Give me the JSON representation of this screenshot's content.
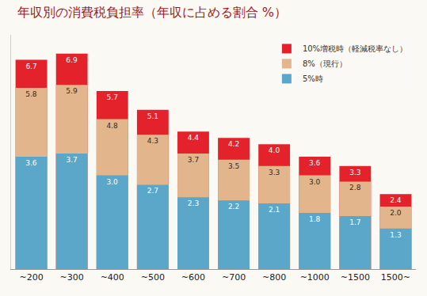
{
  "chart_data": {
    "type": "bar",
    "title": "年収別の消費税負担率（年収に占める割合 %）",
    "categories": [
      "~200",
      "~300",
      "~400",
      "~500",
      "~600",
      "~700",
      "~800",
      "~1000",
      "~1500",
      "1500~"
    ],
    "series": [
      {
        "name": "10%増税時（軽減税率なし）",
        "color": "#e3222b",
        "values": [
          6.7,
          6.9,
          5.7,
          5.1,
          4.4,
          4.2,
          4.0,
          3.6,
          3.3,
          2.4
        ],
        "value_labels": [
          "6.7",
          "6.9",
          "5.7",
          "5.1",
          "4.4",
          "4.2",
          "4.0",
          "3.6",
          "3.3",
          "2.4"
        ]
      },
      {
        "name": "8%（現行）",
        "color": "#e2b58c",
        "values": [
          5.8,
          5.9,
          4.8,
          4.3,
          3.7,
          3.5,
          3.3,
          3.0,
          2.8,
          2.0
        ],
        "value_labels": [
          "5.8",
          "5.9",
          "4.8",
          "4.3",
          "3.7",
          "3.5",
          "3.3",
          "3.0",
          "2.8",
          "2.0"
        ]
      },
      {
        "name": "5%時",
        "color": "#5aa7c9",
        "values": [
          3.6,
          3.7,
          3.0,
          2.7,
          2.3,
          2.2,
          2.1,
          1.8,
          1.7,
          1.3
        ],
        "value_labels": [
          "3.6",
          "3.7",
          "3.0",
          "2.7",
          "2.3",
          "2.2",
          "2.1",
          "1.8",
          "1.7",
          "1.3"
        ]
      }
    ],
    "ylim": [
      0,
      7.5
    ],
    "stacked": false,
    "data_labels": true,
    "tick_labels": "x",
    "legend": "top right",
    "grid": false
  }
}
